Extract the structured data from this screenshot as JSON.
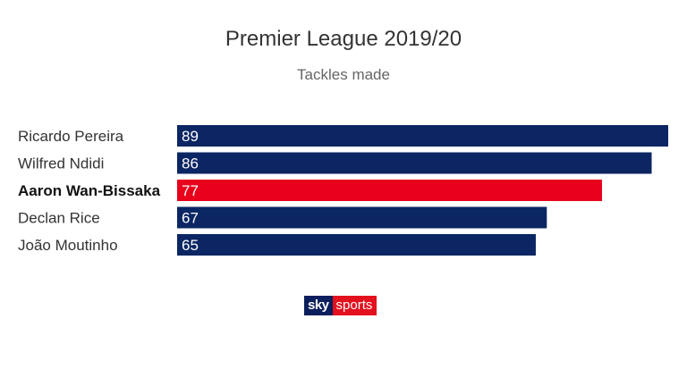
{
  "colors": {
    "bar_default": "#0b2663",
    "bar_highlight": "#e8001c"
  },
  "logo": {
    "sky": "sky",
    "sports": "sports"
  },
  "chart_data": {
    "type": "bar",
    "orientation": "horizontal",
    "title": "Premier League 2019/20",
    "subtitle": "Tackles made",
    "categories": [
      "Ricardo Pereira",
      "Wilfred Ndidi",
      "Aaron Wan-Bissaka",
      "Declan Rice",
      "João Moutinho"
    ],
    "values": [
      89,
      86,
      77,
      67,
      65
    ],
    "highlight": "Aaron Wan-Bissaka",
    "xlim": [
      0,
      89
    ],
    "grid": false,
    "legend": "none"
  }
}
